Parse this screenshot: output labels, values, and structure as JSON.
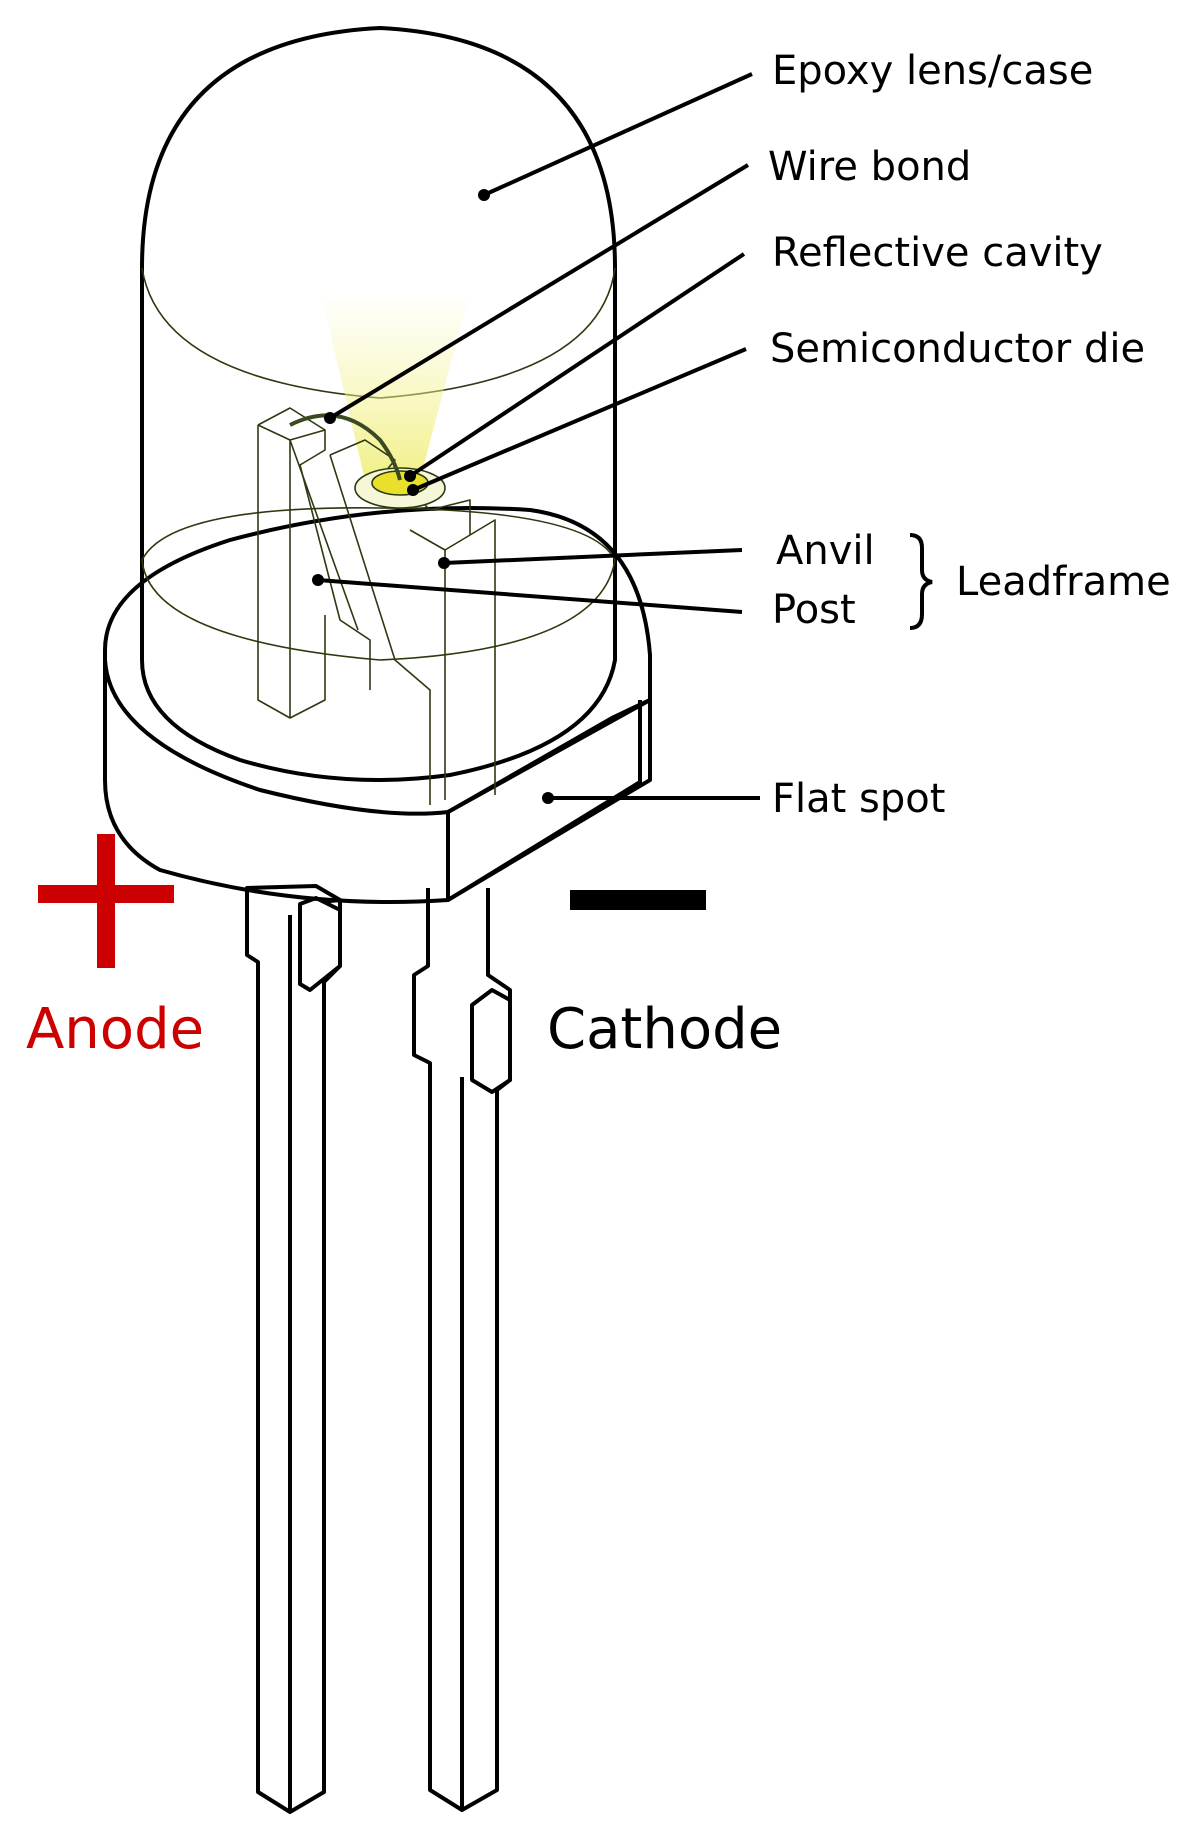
{
  "labels": {
    "epoxy": "Epoxy lens/case",
    "wire_bond": "Wire bond",
    "reflective_cavity": "Reflective cavity",
    "semiconductor_die": "Semiconductor die",
    "anvil": "Anvil",
    "post": "Post",
    "leadframe": "Leadframe",
    "flat_spot": "Flat spot",
    "anode": "Anode",
    "cathode": "Cathode"
  },
  "colors": {
    "epoxy_fill": "#dcf5c4",
    "die": "#e8e02a",
    "anode": "#cc0000",
    "cathode": "#000000"
  }
}
